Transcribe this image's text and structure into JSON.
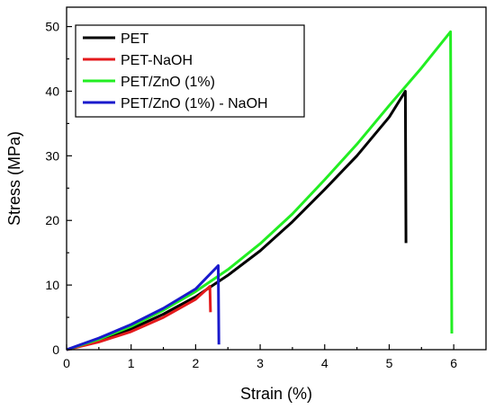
{
  "chart_data": {
    "type": "line",
    "xlabel": "Strain (%)",
    "ylabel": "Stress (MPa)",
    "xlim": [
      0,
      6.5
    ],
    "ylim": [
      0,
      53
    ],
    "xticks": [
      0,
      1,
      2,
      3,
      4,
      5,
      6
    ],
    "yticks": [
      0,
      10,
      20,
      30,
      40,
      50
    ],
    "legend_position": "top-left",
    "grid": false,
    "series": [
      {
        "name": "PET",
        "color": "#000000",
        "points": [
          [
            0,
            0
          ],
          [
            0.5,
            1.4
          ],
          [
            1.0,
            3.2
          ],
          [
            1.5,
            5.5
          ],
          [
            2.0,
            8.2
          ],
          [
            2.5,
            11.5
          ],
          [
            3.0,
            15.3
          ],
          [
            3.5,
            19.8
          ],
          [
            4.0,
            24.8
          ],
          [
            4.5,
            30.0
          ],
          [
            5.0,
            36.0
          ],
          [
            5.25,
            40.0
          ],
          [
            5.26,
            16.5
          ]
        ]
      },
      {
        "name": "PET-NaOH",
        "color": "#e41a1c",
        "points": [
          [
            0,
            0
          ],
          [
            0.5,
            1.2
          ],
          [
            1.0,
            2.8
          ],
          [
            1.5,
            5.0
          ],
          [
            2.0,
            7.8
          ],
          [
            2.22,
            9.8
          ],
          [
            2.23,
            5.8
          ]
        ]
      },
      {
        "name": "PET/ZnO (1%)",
        "color": "#22ee22",
        "points": [
          [
            0,
            0
          ],
          [
            0.5,
            1.6
          ],
          [
            1.0,
            3.6
          ],
          [
            1.5,
            6.1
          ],
          [
            2.0,
            9.0
          ],
          [
            2.5,
            12.4
          ],
          [
            3.0,
            16.4
          ],
          [
            3.5,
            21.0
          ],
          [
            4.0,
            26.3
          ],
          [
            4.5,
            31.8
          ],
          [
            5.0,
            37.8
          ],
          [
            5.5,
            43.6
          ],
          [
            5.95,
            49.2
          ],
          [
            5.97,
            2.5
          ]
        ]
      },
      {
        "name": "PET/ZnO (1%) - NaOH",
        "color": "#1a1acc",
        "points": [
          [
            0,
            0
          ],
          [
            0.5,
            1.8
          ],
          [
            1.0,
            3.9
          ],
          [
            1.5,
            6.4
          ],
          [
            2.0,
            9.4
          ],
          [
            2.35,
            13.0
          ],
          [
            2.36,
            0.8
          ]
        ]
      }
    ]
  }
}
